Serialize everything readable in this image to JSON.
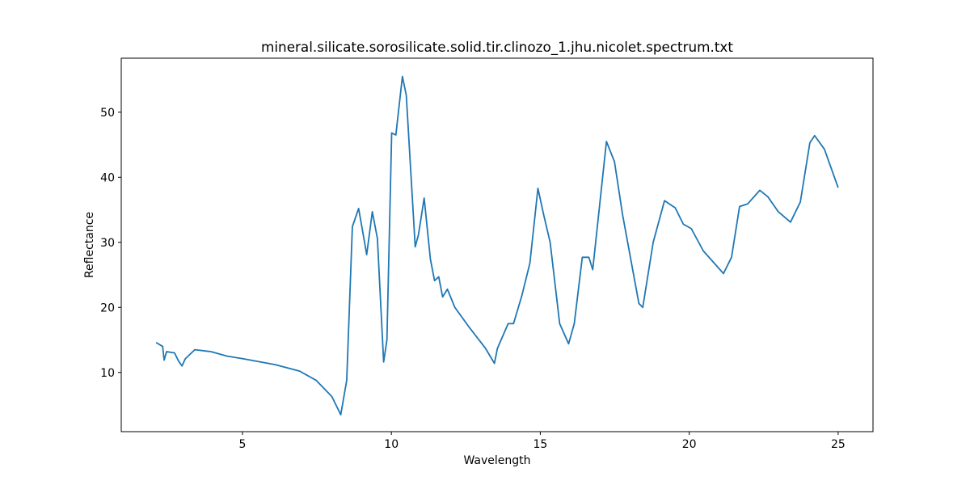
{
  "chart_data": {
    "type": "line",
    "title": "mineral.silicate.sorosilicate.solid.tir.clinozo_1.jhu.nicolet.spectrum.txt",
    "xlabel": "Wavelength",
    "ylabel": "Reflectance",
    "x": [
      2.1,
      2.32,
      2.37,
      2.45,
      2.72,
      2.86,
      2.97,
      3.08,
      3.4,
      3.94,
      4.49,
      5.03,
      6.1,
      6.92,
      7.47,
      8.0,
      8.3,
      8.5,
      8.69,
      8.9,
      9.1,
      9.17,
      9.36,
      9.53,
      9.74,
      9.85,
      10.01,
      10.15,
      10.37,
      10.5,
      10.8,
      10.91,
      11.1,
      11.31,
      11.45,
      11.59,
      11.72,
      11.88,
      12.13,
      12.62,
      13.16,
      13.46,
      13.56,
      13.92,
      14.1,
      14.38,
      14.65,
      14.92,
      15.11,
      15.33,
      15.65,
      15.95,
      16.14,
      16.41,
      16.63,
      16.76,
      17.22,
      17.49,
      17.76,
      18.31,
      18.44,
      18.79,
      19.17,
      19.53,
      19.8,
      20.07,
      20.47,
      21.15,
      21.42,
      21.69,
      21.96,
      22.37,
      22.64,
      22.99,
      23.4,
      23.73,
      24.05,
      24.21,
      24.54,
      25.0
    ],
    "series": [
      {
        "name": "spectrum",
        "color": "#1f77b4",
        "values": [
          14.6,
          14.0,
          11.9,
          13.2,
          13.0,
          11.7,
          11.0,
          12.1,
          13.5,
          13.2,
          12.5,
          12.1,
          11.2,
          10.2,
          8.8,
          6.3,
          3.5,
          8.8,
          32.4,
          35.2,
          30.0,
          28.1,
          34.7,
          30.6,
          11.6,
          15.0,
          46.8,
          46.5,
          55.5,
          52.6,
          29.3,
          31.2,
          36.8,
          27.4,
          24.1,
          24.7,
          21.6,
          22.8,
          20.0,
          16.9,
          13.7,
          11.4,
          13.7,
          17.5,
          17.5,
          21.8,
          26.8,
          38.3,
          34.3,
          30.0,
          17.5,
          14.4,
          17.5,
          27.7,
          27.7,
          25.8,
          45.5,
          42.4,
          34.3,
          20.6,
          20.0,
          30.0,
          36.4,
          35.3,
          32.8,
          32.1,
          28.7,
          25.2,
          27.7,
          35.5,
          35.9,
          38.0,
          37.0,
          34.7,
          33.1,
          36.2,
          45.3,
          46.4,
          44.3,
          38.4
        ]
      }
    ],
    "xlim": [
      0.93,
      26.17
    ],
    "ylim": [
      0.9,
      58.3
    ],
    "xticks": [
      5,
      10,
      15,
      20,
      25
    ],
    "yticks": [
      10,
      20,
      30,
      40,
      50
    ],
    "grid": false
  }
}
